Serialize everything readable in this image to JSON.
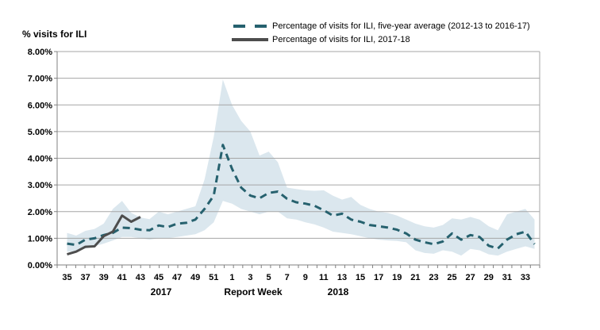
{
  "page": {
    "background": "#ffffff"
  },
  "chart": {
    "y_axis_title": "% visits for ILI",
    "x_axis_title": "Report Week",
    "year_left": "2017",
    "year_right": "2018",
    "legend": [
      {
        "label": "Percentage of visits for ILI, five-year average (2012-13 to 2016-17)",
        "style": "dashed"
      },
      {
        "label": "Percentage of visits for ILI, 2017-18",
        "style": "solid"
      }
    ]
  },
  "chart_data": {
    "type": "line",
    "title": "",
    "xlabel": "Report Week",
    "ylabel": "% visits for ILI",
    "ylim": [
      0,
      8
    ],
    "ytick_labels": [
      "0.00%",
      "1.00%",
      "2.00%",
      "3.00%",
      "4.00%",
      "5.00%",
      "6.00%",
      "7.00%",
      "8.00%"
    ],
    "x_unit": "report week",
    "weeks": [
      35,
      36,
      37,
      38,
      39,
      40,
      41,
      42,
      43,
      44,
      45,
      46,
      47,
      48,
      49,
      50,
      51,
      52,
      1,
      2,
      3,
      4,
      5,
      6,
      7,
      8,
      9,
      10,
      11,
      12,
      13,
      14,
      15,
      16,
      17,
      18,
      19,
      20,
      21,
      22,
      23,
      24,
      25,
      26,
      27,
      28,
      29,
      30,
      31,
      32,
      33,
      34
    ],
    "x_tick_labels": [
      "35",
      "37",
      "39",
      "41",
      "43",
      "45",
      "47",
      "49",
      "51",
      "1",
      "3",
      "5",
      "7",
      "9",
      "11",
      "13",
      "15",
      "17",
      "19",
      "21",
      "23",
      "25",
      "27",
      "29",
      "31",
      "33"
    ],
    "grid": "horizontal",
    "legend_position": "top-center",
    "axis_color": "#808080",
    "grid_color": "#a6a6a6",
    "series": [
      {
        "name": "Percentage of visits for ILI, five-year average (2012-13 to 2016-17)",
        "style": "dashed",
        "color": "#26616e",
        "values": [
          0.8,
          0.75,
          0.95,
          1.0,
          1.12,
          1.2,
          1.4,
          1.38,
          1.32,
          1.3,
          1.48,
          1.42,
          1.55,
          1.58,
          1.7,
          2.1,
          2.6,
          4.5,
          3.6,
          2.9,
          2.6,
          2.5,
          2.7,
          2.75,
          2.48,
          2.35,
          2.3,
          2.22,
          2.05,
          1.85,
          1.92,
          1.7,
          1.62,
          1.5,
          1.45,
          1.4,
          1.32,
          1.18,
          0.95,
          0.85,
          0.78,
          0.88,
          1.18,
          0.95,
          1.12,
          1.05,
          0.72,
          0.62,
          0.95,
          1.15,
          1.25,
          0.78
        ]
      },
      {
        "name": "Percentage of visits for ILI, 2017-18",
        "style": "solid",
        "color": "#4d4d4d",
        "values": [
          0.4,
          0.5,
          0.68,
          0.7,
          1.08,
          1.25,
          1.85,
          1.62,
          1.8,
          null,
          null,
          null,
          null,
          null,
          null,
          null,
          null,
          null,
          null,
          null,
          null,
          null,
          null,
          null,
          null,
          null,
          null,
          null,
          null,
          null,
          null,
          null,
          null,
          null,
          null,
          null,
          null,
          null,
          null,
          null,
          null,
          null,
          null,
          null,
          null,
          null,
          null,
          null,
          null,
          null,
          null,
          null
        ]
      }
    ],
    "band": {
      "name": "five-year range around average",
      "color": "#dbe7ee",
      "upper": [
        1.2,
        1.1,
        1.28,
        1.35,
        1.55,
        2.1,
        2.4,
        1.95,
        1.78,
        1.72,
        2.0,
        1.9,
        2.0,
        2.1,
        2.2,
        3.2,
        4.8,
        6.95,
        6.0,
        5.4,
        5.0,
        4.1,
        4.25,
        3.85,
        2.9,
        2.85,
        2.8,
        2.78,
        2.8,
        2.6,
        2.45,
        2.55,
        2.25,
        2.1,
        2.0,
        1.95,
        1.85,
        1.7,
        1.55,
        1.45,
        1.4,
        1.5,
        1.75,
        1.7,
        1.8,
        1.7,
        1.45,
        1.3,
        1.9,
        2.0,
        2.1,
        1.7
      ],
      "lower": [
        0.5,
        0.5,
        0.62,
        0.7,
        0.8,
        0.92,
        1.05,
        1.05,
        1.0,
        0.95,
        1.0,
        1.0,
        1.05,
        1.1,
        1.15,
        1.3,
        1.6,
        2.4,
        2.3,
        2.1,
        2.0,
        1.9,
        2.0,
        2.0,
        1.75,
        1.7,
        1.6,
        1.52,
        1.4,
        1.25,
        1.2,
        1.15,
        1.08,
        1.0,
        0.95,
        0.92,
        0.9,
        0.85,
        0.55,
        0.45,
        0.42,
        0.55,
        0.5,
        0.35,
        0.6,
        0.55,
        0.4,
        0.35,
        0.5,
        0.6,
        0.7,
        0.6
      ]
    }
  }
}
